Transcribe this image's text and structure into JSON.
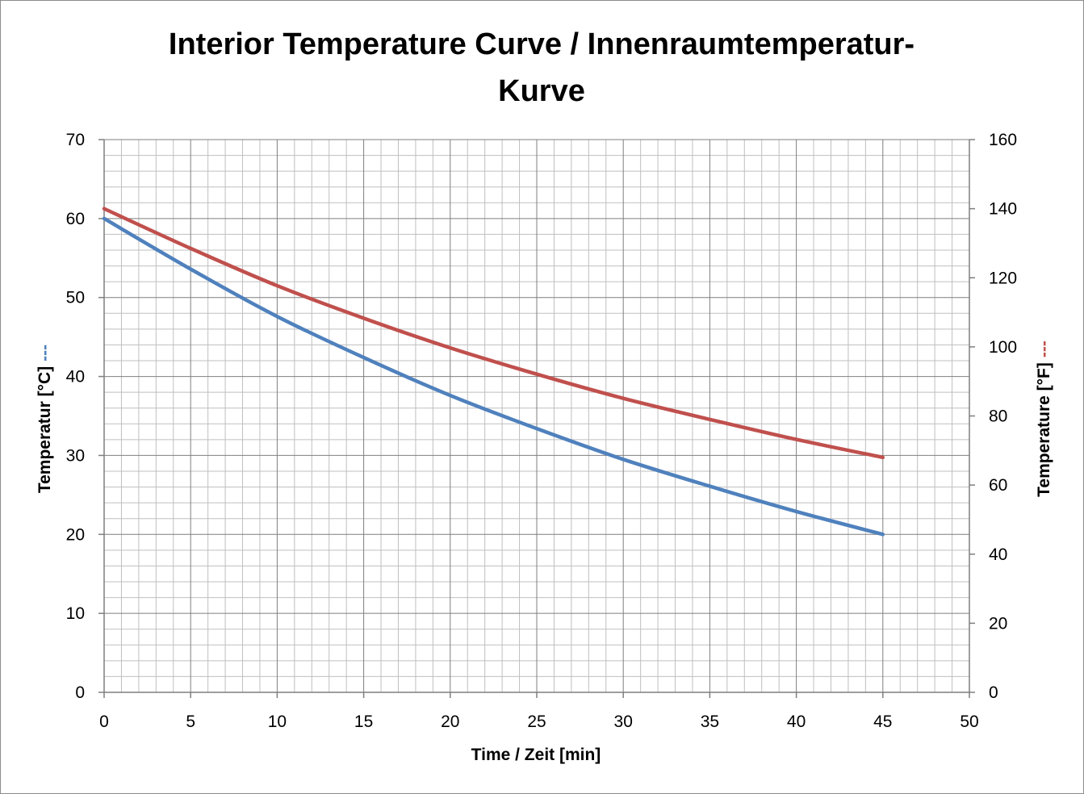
{
  "chart_data": {
    "type": "line",
    "title_lines": [
      "Interior Temperature Curve / Innenraumtemperatur-",
      "Kurve"
    ],
    "xlabel": "Time / Zeit [min]",
    "ylabel_left": "Temperatur [°C]",
    "ylabel_left_marker": "---",
    "ylabel_right": "Temperature [°F]",
    "ylabel_right_marker": "---",
    "xlim": [
      0,
      50
    ],
    "ylim_left": [
      0,
      70
    ],
    "ylim_right": [
      0,
      160
    ],
    "x_ticks": [
      "0",
      "5",
      "10",
      "15",
      "20",
      "25",
      "30",
      "35",
      "40",
      "45",
      "50"
    ],
    "y_ticks_left": [
      "0",
      "10",
      "20",
      "30",
      "40",
      "50",
      "60",
      "70"
    ],
    "y_ticks_right": [
      "0",
      "20",
      "40",
      "60",
      "80",
      "100",
      "120",
      "140",
      "160"
    ],
    "grid": true,
    "grid_minor_x_step": 1,
    "grid_minor_y_step": 2,
    "series": [
      {
        "axis": "left",
        "color": "#4f81bd",
        "x": [
          0,
          5,
          10,
          15,
          20,
          25,
          30,
          35,
          40,
          45
        ],
        "y": [
          60,
          53.6,
          47.6,
          42.4,
          37.6,
          33.4,
          29.5,
          26.1,
          22.9,
          20.0
        ]
      },
      {
        "axis": "right",
        "color": "#c0504d",
        "x": [
          0,
          5,
          10,
          15,
          20,
          25,
          30,
          35,
          40,
          45
        ],
        "y": [
          140,
          128.5,
          117.7,
          108.3,
          99.7,
          92.1,
          85.1,
          79.0,
          73.2,
          68.0
        ]
      }
    ]
  }
}
